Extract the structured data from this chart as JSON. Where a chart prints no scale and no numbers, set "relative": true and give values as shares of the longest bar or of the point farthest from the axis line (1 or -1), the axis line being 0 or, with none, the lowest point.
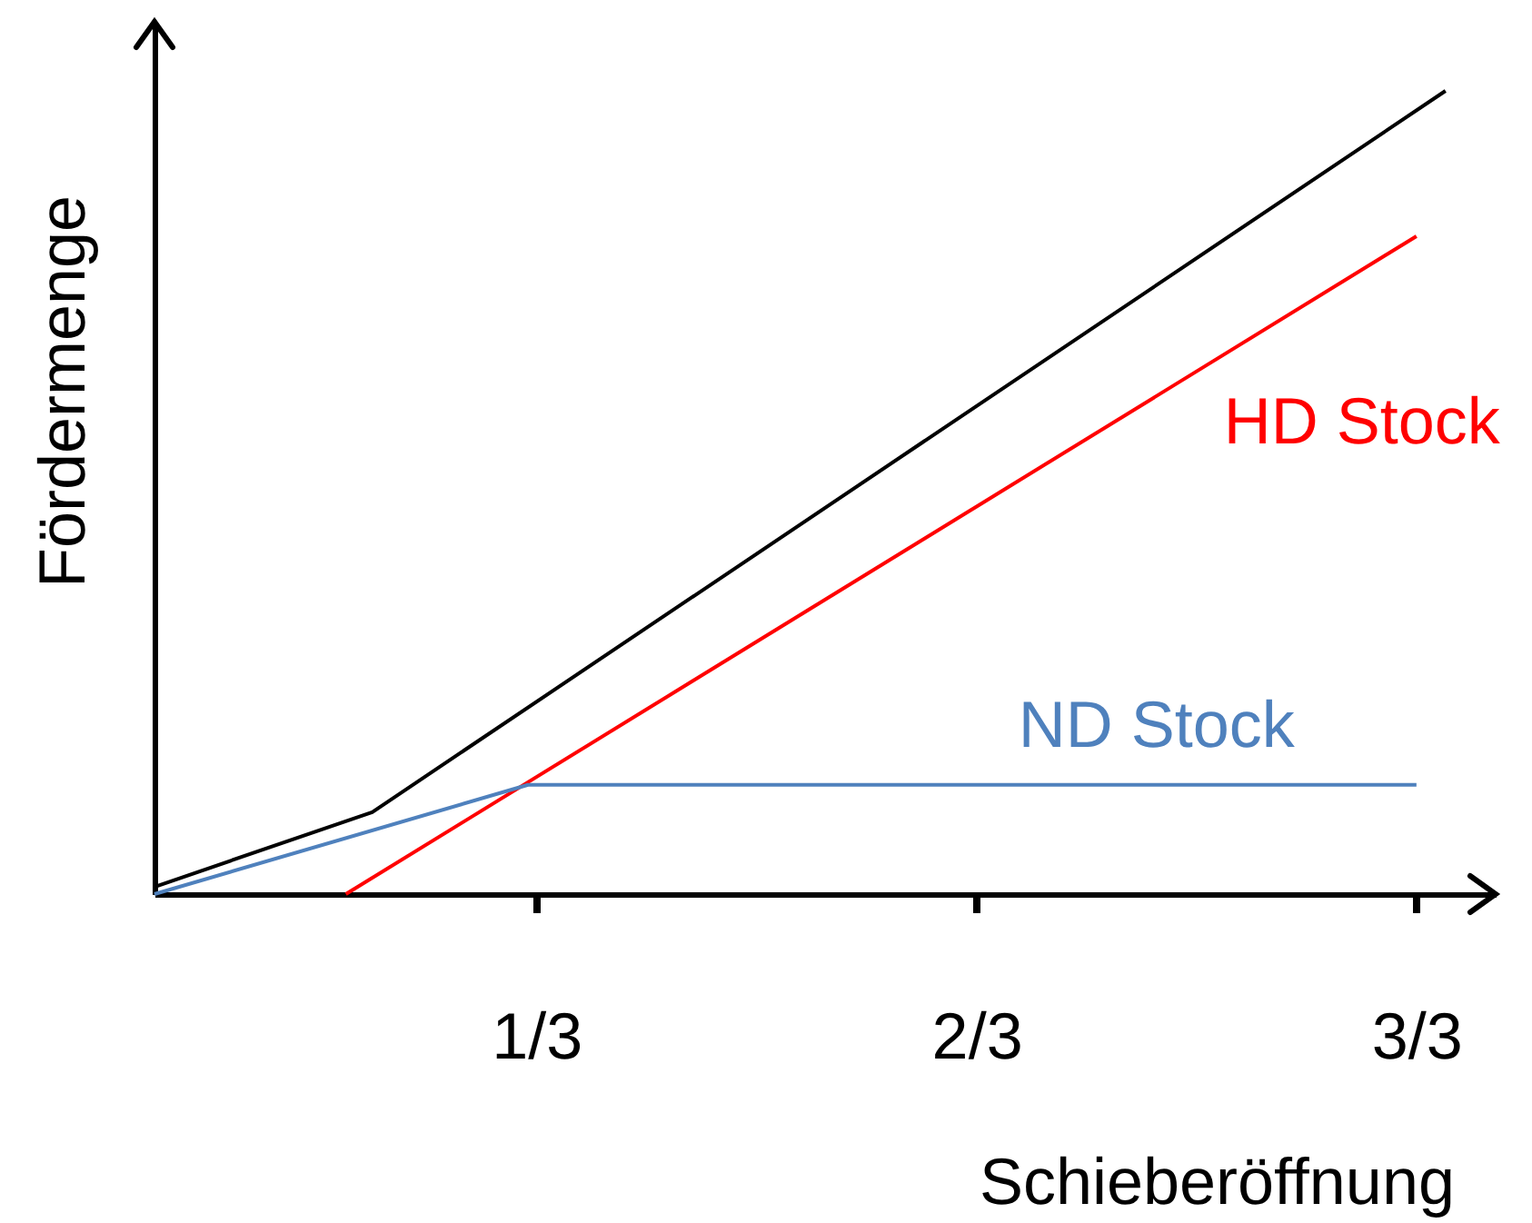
{
  "chart_data": {
    "type": "line",
    "xlabel": "Schieberöffnung",
    "ylabel": "Fördermenge",
    "relative": true,
    "xlim": [
      0.044,
      1.06
    ],
    "xticks": [
      {
        "value": 0.3333,
        "label": "1/3"
      },
      {
        "value": 0.6667,
        "label": "2/3"
      },
      {
        "value": 1,
        "label": "3/3"
      }
    ],
    "grid": false,
    "marker": "none",
    "line_style": "solid",
    "series": [
      {
        "color": "#000000",
        "x": [
          0.044,
          0.209,
          1.022
        ],
        "values": [
          0.009,
          0.102,
          1
        ]
      },
      {
        "name": "HD Stock",
        "color": "#ff0000",
        "x": [
          0.189,
          1
        ],
        "values": [
          0,
          0.819
        ]
      },
      {
        "name": "ND Stock",
        "color": "#4f81bd",
        "x": [
          0.044,
          0.327,
          1
        ],
        "values": [
          0,
          0.136,
          0.136
        ]
      }
    ]
  }
}
